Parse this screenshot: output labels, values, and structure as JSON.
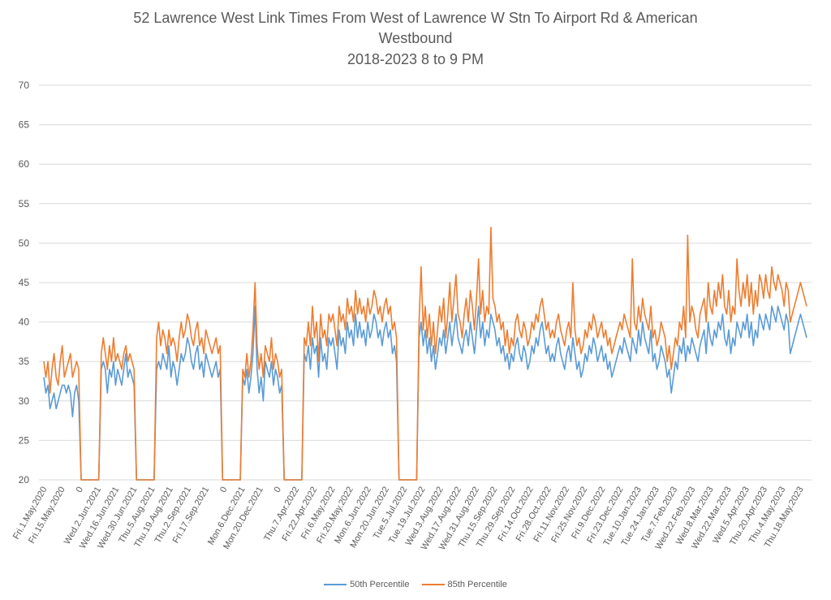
{
  "colors": {
    "p50": "#5B9BD5",
    "p85": "#ED7D31",
    "grid": "#D9D9D9",
    "text": "#595959"
  },
  "title": {
    "line1": "52 Lawrence West Link Times From West of Lawrence W Stn To Airport Rd & American",
    "line2": "Westbound",
    "line3": "2018-2023 8 to 9 PM"
  },
  "legend": {
    "p50": "50th Percentile",
    "p85": "85th Percentile"
  },
  "chart_data": {
    "type": "line",
    "title": "52 Lawrence West Link Times From West of Lawrence W Stn To Airport Rd & American Westbound 2018-2023 8 to 9 PM",
    "ylim": [
      20,
      70
    ],
    "yticks": [
      20,
      25,
      30,
      35,
      40,
      45,
      50,
      55,
      60,
      65,
      70
    ],
    "grid": true,
    "legend_position": "bottom",
    "x_tick_labels": [
      "Fri.1.May.2020",
      "Fri.15.May.2020",
      "0",
      "Wed.2.Jun.2021",
      "Wed.16.Jun.2021",
      "Wed.30.Jun.2021",
      "Thu.5.Aug.2021",
      "Thu.19.Aug.2021",
      "Thu.2.Sep.2021",
      "Fri.17.Sep.2021",
      "0",
      "Mon.6.Dec.2021",
      "Mon.20.Dec.2021",
      "0",
      "Thu.7.Apr.2022",
      "Fri.22.Apr.2022",
      "Fri.6.May.2022",
      "Fri.20.May.2022",
      "Mon.6.Jun.2022",
      "Mon.20.Jun.2022",
      "Tue.5.Jul.2022",
      "Tue.19.Jul.2022",
      "Wed.3.Aug.2022",
      "Wed.17.Aug.2022",
      "Wed.31.Aug.2022",
      "Thu.15.Sep.2022",
      "Thu.29.Sep.2022",
      "Fri.14.Oct.2022",
      "Fri.28.Oct.2022",
      "Fri.11.Nov.2022",
      "Fri.25.Nov.2022",
      "Fri.9.Dec.2022",
      "Fri.23.Dec.2022",
      "Tue.10.Jan.2023",
      "Tue.24.Jan.2023",
      "Tue.7.Feb.2023",
      "Wed.22.Feb.2023",
      "Wed.8.Mar.2023",
      "Wed.22.Mar.2023",
      "Wed.5.Apr.2023",
      "Thu.20.Apr.2023",
      "Thu.4.May.2023",
      "Thu.18.May.2023"
    ],
    "series": [
      {
        "name": "50th Percentile",
        "key": "p50",
        "segments": [
          [
            33,
            31,
            32,
            29,
            30,
            31,
            29,
            30,
            31,
            32,
            32,
            31,
            32,
            31,
            28,
            31,
            32,
            30
          ],
          [
            34,
            35,
            34,
            31,
            34,
            33,
            35,
            32,
            34,
            33,
            32,
            34,
            36,
            33,
            34,
            33,
            32
          ],
          [
            34,
            35,
            34,
            36,
            35,
            34,
            37,
            33,
            35,
            34,
            32,
            34,
            36,
            35,
            36,
            38,
            37,
            35,
            34,
            36,
            37,
            34,
            35,
            33,
            36,
            35,
            34,
            33,
            34,
            35,
            33,
            34
          ],
          [
            33,
            32,
            34,
            31,
            33,
            36,
            42,
            34,
            31,
            33,
            30,
            35,
            34,
            33,
            35,
            32,
            34,
            33,
            31,
            32
          ],
          [
            36,
            35,
            37,
            34,
            38,
            36,
            37,
            33,
            38,
            35,
            36,
            34,
            38,
            37,
            38,
            36,
            34,
            39,
            37,
            38,
            36,
            40,
            38,
            39,
            37,
            41,
            38,
            40,
            38,
            39,
            37,
            40,
            38,
            39,
            41,
            40,
            38,
            39,
            37,
            39,
            40,
            38,
            39,
            36,
            37,
            35
          ],
          [
            38,
            40,
            37,
            39,
            36,
            38,
            35,
            37,
            34,
            36,
            38,
            37,
            39,
            36,
            38,
            40,
            37,
            39,
            41,
            38,
            37,
            36,
            38,
            39,
            37,
            40,
            38,
            36,
            39,
            42,
            38,
            40,
            37,
            39,
            38,
            41,
            40,
            39,
            37,
            38,
            36,
            37,
            35,
            36,
            34,
            36,
            35,
            37,
            38,
            36,
            35,
            37,
            36,
            34,
            35,
            37,
            36,
            38,
            37,
            39,
            40,
            38,
            36,
            37,
            35,
            36,
            35,
            37,
            38,
            36,
            35,
            34,
            36,
            37,
            35,
            38,
            36,
            34,
            35,
            33,
            34,
            36,
            35,
            37,
            36,
            38,
            37,
            35,
            36,
            37,
            35,
            36,
            34,
            35,
            33,
            34,
            35,
            36,
            37,
            36,
            38,
            37,
            36,
            35,
            38,
            37,
            36,
            39,
            37,
            40,
            38,
            37,
            36,
            39,
            35,
            36,
            34,
            35,
            37,
            36,
            35,
            33,
            34,
            31,
            33,
            35,
            34,
            37,
            36,
            38,
            35,
            37,
            36,
            38,
            37,
            36,
            35,
            37,
            38,
            39,
            36,
            40,
            38,
            37,
            39,
            38,
            40,
            39,
            41,
            38,
            37,
            39,
            36,
            38,
            37,
            40,
            39,
            38,
            40,
            39,
            41,
            38,
            40,
            37,
            39,
            38,
            41,
            40,
            39,
            41,
            40,
            39,
            42,
            41,
            40,
            42,
            41,
            40,
            39,
            41,
            40,
            36,
            37,
            38,
            39,
            40,
            41,
            40,
            39,
            38
          ]
        ]
      },
      {
        "name": "85th Percentile",
        "key": "p85",
        "segments": [
          [
            35,
            33,
            35,
            31,
            34,
            36,
            33,
            32,
            35,
            37,
            33,
            34,
            35,
            36,
            33,
            34,
            35,
            34
          ],
          [
            36,
            38,
            36,
            34,
            37,
            35,
            38,
            35,
            36,
            35,
            34,
            36,
            37,
            35,
            36,
            35,
            34
          ],
          [
            38,
            40,
            37,
            39,
            38,
            36,
            39,
            37,
            38,
            37,
            35,
            38,
            40,
            38,
            39,
            41,
            40,
            38,
            37,
            39,
            40,
            37,
            38,
            36,
            39,
            38,
            37,
            36,
            37,
            38,
            36,
            37
          ],
          [
            34,
            33,
            36,
            33,
            35,
            39,
            45,
            37,
            34,
            36,
            33,
            37,
            36,
            35,
            38,
            34,
            36,
            35,
            33,
            34
          ],
          [
            38,
            37,
            40,
            37,
            42,
            38,
            40,
            35,
            41,
            38,
            39,
            37,
            41,
            40,
            41,
            39,
            37,
            42,
            40,
            41,
            39,
            43,
            41,
            42,
            40,
            44,
            41,
            43,
            41,
            42,
            40,
            43,
            41,
            42,
            44,
            43,
            41,
            42,
            40,
            42,
            43,
            41,
            42,
            39,
            40,
            38
          ],
          [
            40,
            47,
            39,
            42,
            38,
            41,
            37,
            40,
            36,
            39,
            42,
            40,
            43,
            38,
            41,
            45,
            40,
            43,
            46,
            41,
            40,
            38,
            41,
            43,
            40,
            44,
            42,
            39,
            43,
            48,
            41,
            44,
            40,
            42,
            41,
            52,
            43,
            42,
            40,
            41,
            39,
            40,
            37,
            39,
            36,
            38,
            37,
            40,
            41,
            39,
            38,
            40,
            39,
            37,
            38,
            40,
            39,
            41,
            40,
            42,
            43,
            41,
            39,
            40,
            38,
            39,
            38,
            40,
            41,
            39,
            38,
            37,
            39,
            40,
            38,
            45,
            39,
            37,
            38,
            36,
            37,
            39,
            38,
            40,
            39,
            41,
            40,
            38,
            39,
            40,
            38,
            39,
            37,
            38,
            36,
            37,
            38,
            39,
            40,
            39,
            41,
            40,
            39,
            38,
            48,
            40,
            39,
            42,
            40,
            43,
            41,
            40,
            39,
            42,
            38,
            39,
            37,
            38,
            40,
            39,
            38,
            35,
            37,
            34,
            36,
            38,
            37,
            40,
            39,
            42,
            38,
            51,
            40,
            42,
            41,
            39,
            38,
            41,
            42,
            43,
            40,
            45,
            42,
            41,
            44,
            42,
            45,
            43,
            46,
            42,
            41,
            44,
            40,
            42,
            41,
            48,
            44,
            42,
            45,
            43,
            46,
            42,
            45,
            41,
            44,
            42,
            46,
            45,
            43,
            46,
            44,
            43,
            47,
            45,
            44,
            46,
            45,
            44,
            42,
            45,
            44,
            40,
            41,
            42,
            43,
            44,
            45,
            44,
            43,
            42
          ]
        ]
      }
    ]
  }
}
